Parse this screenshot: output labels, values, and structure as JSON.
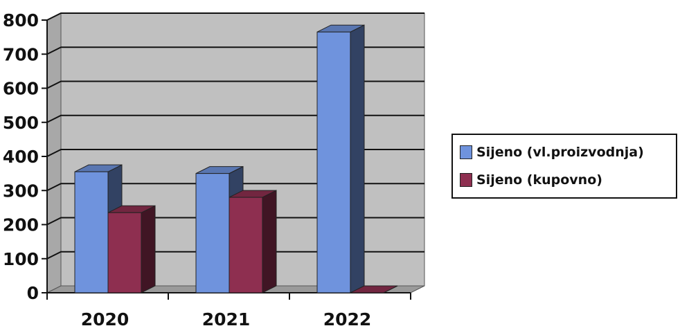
{
  "chart_data": {
    "type": "bar",
    "style": "3d-clustered-column",
    "categories": [
      "2020",
      "2021",
      "2022"
    ],
    "series": [
      {
        "name": "Sijeno (vl.proizvodnja)",
        "values": [
          355,
          350,
          765
        ],
        "color": "#6f93dd"
      },
      {
        "name": "Sijeno (kupovno)",
        "values": [
          235,
          280,
          0
        ],
        "color": "#8e2f50"
      }
    ],
    "y_ticks": [
      "0",
      "100",
      "200",
      "300",
      "400",
      "500",
      "600",
      "700",
      "800"
    ],
    "ylim": [
      0,
      800
    ],
    "grid": true,
    "background": "#c0c0c0",
    "legend_position": "right",
    "title": "",
    "xlabel": "",
    "ylabel": ""
  }
}
